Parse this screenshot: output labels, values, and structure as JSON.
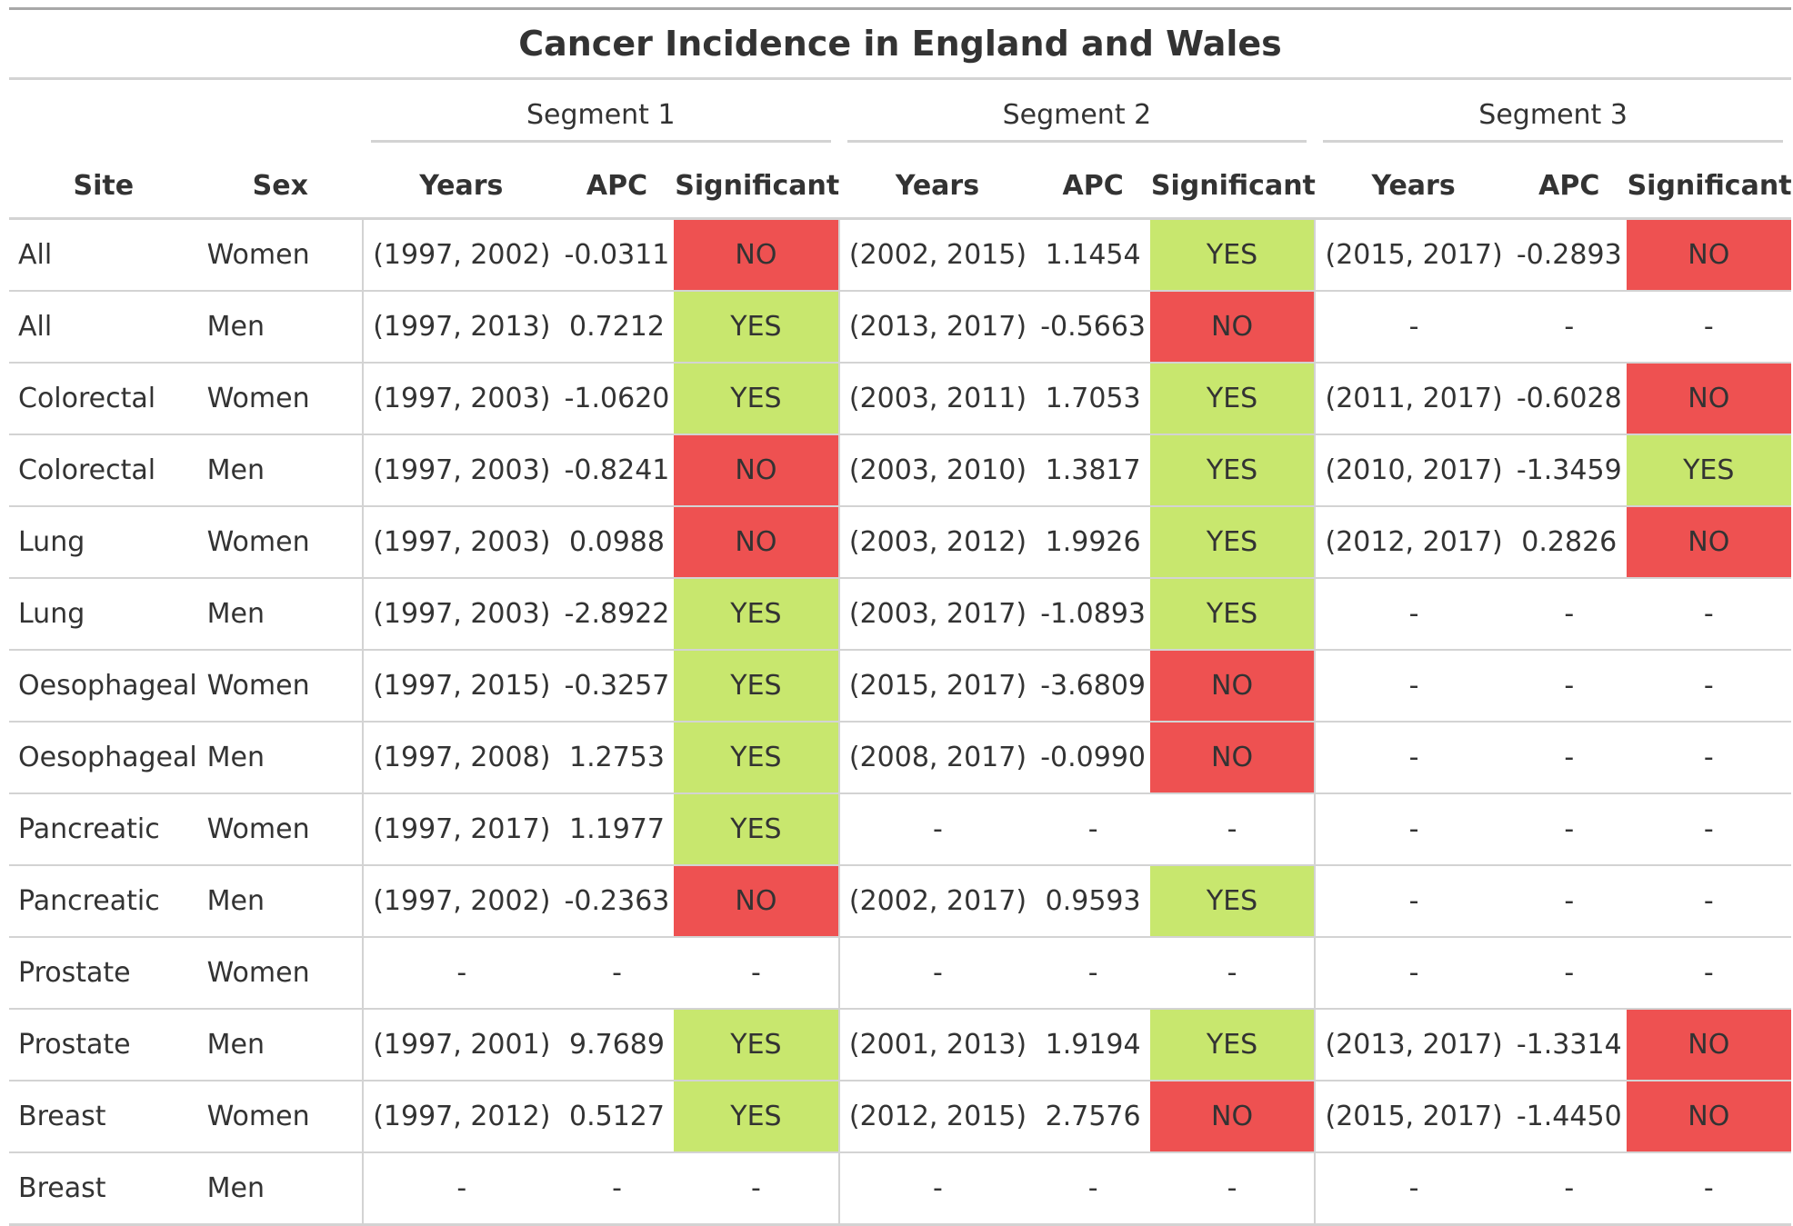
{
  "title": "Cancer Incidence in England and Wales",
  "spanners": [
    "Segment 1",
    "Segment 2",
    "Segment 3"
  ],
  "columns": [
    "Site",
    "Sex",
    "Years",
    "APC",
    "Significant",
    "Years",
    "APC",
    "Significant",
    "Years",
    "APC",
    "Significant"
  ],
  "colors": {
    "yes": "#c8e76e",
    "no": "#ee5151",
    "rule": "#d3d3d3"
  },
  "rows": [
    {
      "site": "All",
      "sex": "Women",
      "seg": [
        [
          "(1997, 2002)",
          "-0.0311",
          "NO"
        ],
        [
          "(2002, 2015)",
          "1.1454",
          "YES"
        ],
        [
          "(2015, 2017)",
          "-0.2893",
          "NO"
        ]
      ]
    },
    {
      "site": "All",
      "sex": "Men",
      "seg": [
        [
          "(1997, 2013)",
          "0.7212",
          "YES"
        ],
        [
          "(2013, 2017)",
          "-0.5663",
          "NO"
        ],
        [
          "-",
          "-",
          "-"
        ]
      ]
    },
    {
      "site": "Colorectal",
      "sex": "Women",
      "seg": [
        [
          "(1997, 2003)",
          "-1.0620",
          "YES"
        ],
        [
          "(2003, 2011)",
          "1.7053",
          "YES"
        ],
        [
          "(2011, 2017)",
          "-0.6028",
          "NO"
        ]
      ]
    },
    {
      "site": "Colorectal",
      "sex": "Men",
      "seg": [
        [
          "(1997, 2003)",
          "-0.8241",
          "NO"
        ],
        [
          "(2003, 2010)",
          "1.3817",
          "YES"
        ],
        [
          "(2010, 2017)",
          "-1.3459",
          "YES"
        ]
      ]
    },
    {
      "site": "Lung",
      "sex": "Women",
      "seg": [
        [
          "(1997, 2003)",
          "0.0988",
          "NO"
        ],
        [
          "(2003, 2012)",
          "1.9926",
          "YES"
        ],
        [
          "(2012, 2017)",
          "0.2826",
          "NO"
        ]
      ]
    },
    {
      "site": "Lung",
      "sex": "Men",
      "seg": [
        [
          "(1997, 2003)",
          "-2.8922",
          "YES"
        ],
        [
          "(2003, 2017)",
          "-1.0893",
          "YES"
        ],
        [
          "-",
          "-",
          "-"
        ]
      ]
    },
    {
      "site": "Oesophageal",
      "sex": "Women",
      "seg": [
        [
          "(1997, 2015)",
          "-0.3257",
          "YES"
        ],
        [
          "(2015, 2017)",
          "-3.6809",
          "NO"
        ],
        [
          "-",
          "-",
          "-"
        ]
      ]
    },
    {
      "site": "Oesophageal",
      "sex": "Men",
      "seg": [
        [
          "(1997, 2008)",
          "1.2753",
          "YES"
        ],
        [
          "(2008, 2017)",
          "-0.0990",
          "NO"
        ],
        [
          "-",
          "-",
          "-"
        ]
      ]
    },
    {
      "site": "Pancreatic",
      "sex": "Women",
      "seg": [
        [
          "(1997, 2017)",
          "1.1977",
          "YES"
        ],
        [
          "-",
          "-",
          "-"
        ],
        [
          "-",
          "-",
          "-"
        ]
      ]
    },
    {
      "site": "Pancreatic",
      "sex": "Men",
      "seg": [
        [
          "(1997, 2002)",
          "-0.2363",
          "NO"
        ],
        [
          "(2002, 2017)",
          "0.9593",
          "YES"
        ],
        [
          "-",
          "-",
          "-"
        ]
      ]
    },
    {
      "site": "Prostate",
      "sex": "Women",
      "seg": [
        [
          "-",
          "-",
          "-"
        ],
        [
          "-",
          "-",
          "-"
        ],
        [
          "-",
          "-",
          "-"
        ]
      ]
    },
    {
      "site": "Prostate",
      "sex": "Men",
      "seg": [
        [
          "(1997, 2001)",
          "9.7689",
          "YES"
        ],
        [
          "(2001, 2013)",
          "1.9194",
          "YES"
        ],
        [
          "(2013, 2017)",
          "-1.3314",
          "NO"
        ]
      ]
    },
    {
      "site": "Breast",
      "sex": "Women",
      "seg": [
        [
          "(1997, 2012)",
          "0.5127",
          "YES"
        ],
        [
          "(2012, 2015)",
          "2.7576",
          "NO"
        ],
        [
          "(2015, 2017)",
          "-1.4450",
          "NO"
        ]
      ]
    },
    {
      "site": "Breast",
      "sex": "Men",
      "seg": [
        [
          "-",
          "-",
          "-"
        ],
        [
          "-",
          "-",
          "-"
        ],
        [
          "-",
          "-",
          "-"
        ]
      ]
    }
  ]
}
